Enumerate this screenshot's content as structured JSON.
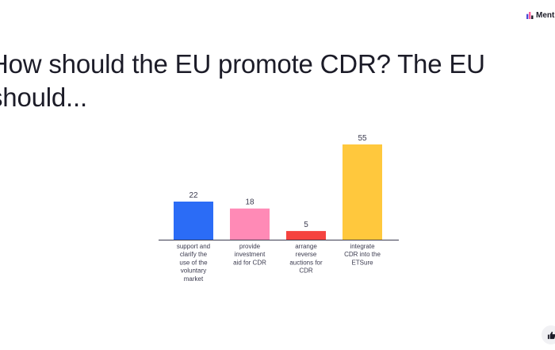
{
  "brand": {
    "name": "Menti",
    "icon": "mentimeter-logo-icon"
  },
  "question": {
    "title": "How should the EU promote CDR? The EU should..."
  },
  "reaction": {
    "icon": "thumbs-up-icon"
  },
  "chart_data": {
    "type": "bar",
    "title": "How should the EU promote CDR? The EU should...",
    "categories": [
      "support and clarify the use of the voluntary market",
      "provide investment aid for CDR",
      "arrange reverse auctions for CDR",
      "integrate CDR into the ETSure"
    ],
    "category_lines": [
      [
        "support and",
        "clarify the",
        "use of the",
        "voluntary",
        "market"
      ],
      [
        "provide",
        "investment",
        "aid for CDR"
      ],
      [
        "arrange",
        "reverse",
        "auctions for",
        "CDR"
      ],
      [
        "integrate",
        "CDR into the",
        "ETSure"
      ]
    ],
    "values": [
      22,
      18,
      5,
      55
    ],
    "colors": [
      "#2b6cf6",
      "#ff8ab6",
      "#f5433f",
      "#ffc83d"
    ],
    "xlabel": "",
    "ylabel": "",
    "ylim": [
      0,
      55
    ],
    "grid": false,
    "legend": "none"
  }
}
